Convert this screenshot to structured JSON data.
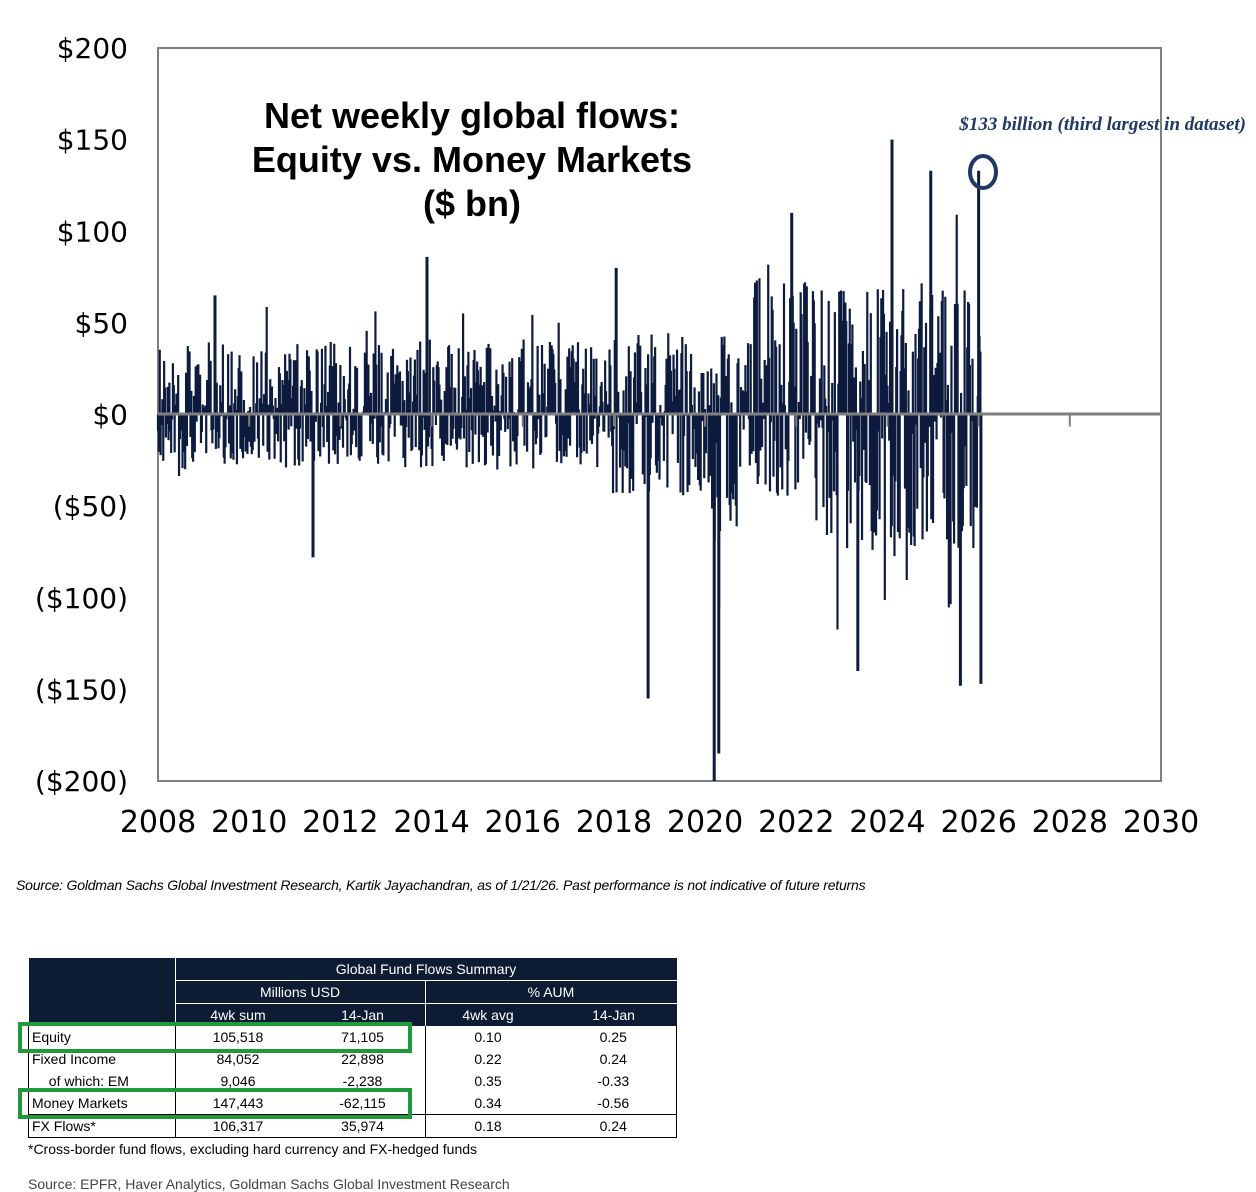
{
  "chart_data": {
    "type": "bar",
    "title_lines": [
      "Net weekly global flows:",
      "Equity vs. Money Markets",
      "($ bn)"
    ],
    "xlabel": "",
    "ylabel": "",
    "xlim": [
      2008,
      2030
    ],
    "ylim": [
      -200,
      200
    ],
    "y_ticks": [
      200,
      150,
      100,
      50,
      0,
      -50,
      -100,
      -150,
      -200
    ],
    "y_tick_labels": [
      "$200",
      "$150",
      "$100",
      "$50",
      "$0",
      "($50)",
      "($100)",
      "($150)",
      "($200)"
    ],
    "x_ticks": [
      2008,
      2010,
      2012,
      2014,
      2016,
      2018,
      2020,
      2022,
      2024,
      2026,
      2028,
      2030
    ],
    "x_tick_labels": [
      "2008",
      "2010",
      "2012",
      "2014",
      "2016",
      "2018",
      "2020",
      "2022",
      "2024",
      "2026",
      "2028",
      "2030"
    ],
    "series_note": "weekly net flows, approx. Jan 2008 - Jan 2026",
    "notable_points": [
      {
        "x": 2009.25,
        "y": 65
      },
      {
        "x": 2011.4,
        "y": -78
      },
      {
        "x": 2013.9,
        "y": 86
      },
      {
        "x": 2018.05,
        "y": 80
      },
      {
        "x": 2018.75,
        "y": -155
      },
      {
        "x": 2020.2,
        "y": -200
      },
      {
        "x": 2020.3,
        "y": -185
      },
      {
        "x": 2021.9,
        "y": 110
      },
      {
        "x": 2023.35,
        "y": -140
      },
      {
        "x": 2024.95,
        "y": 133
      },
      {
        "x": 2024.1,
        "y": 150
      },
      {
        "x": 2025.6,
        "y": -148
      },
      {
        "x": 2026.0,
        "y": 133
      },
      {
        "x": 2026.05,
        "y": -147
      }
    ],
    "annotation": {
      "text": "$133 billion (third largest in dataset)",
      "x": 2026.0,
      "y": 133
    }
  },
  "source_note": "Source: Goldman Sachs Global Investment Research, Kartik Jayachandran, as of 1/21/26. Past performance is not indicative of future returns",
  "table": {
    "title": "Global Fund Flows Summary",
    "group1": "Millions USD",
    "group2": "% AUM",
    "columns": [
      "4wk sum",
      "14-Jan",
      "4wk avg",
      "14-Jan"
    ],
    "rows": [
      {
        "label": "Equity",
        "values": [
          "105,518",
          "71,105",
          "0.10",
          "0.25"
        ]
      },
      {
        "label": "Fixed Income",
        "values": [
          "84,052",
          "22,898",
          "0.22",
          "0.24"
        ]
      },
      {
        "label": "  of which: EM",
        "values": [
          "9,046",
          "-2,238",
          "0.35",
          "-0.33"
        ]
      },
      {
        "label": "Money Markets",
        "values": [
          "147,443",
          "-62,115",
          "0.34",
          "-0.56"
        ]
      },
      {
        "label": "FX Flows*",
        "values": [
          "106,317",
          "35,974",
          "0.18",
          "0.24"
        ]
      }
    ],
    "footnote": "*Cross-border fund flows, excluding hard currency and FX-hedged funds",
    "source": "Source: EPFR, Haver Analytics, Goldman Sachs Global Investment Research"
  },
  "colors": {
    "bars": "#0d1b3e",
    "annotation": "#1f3864",
    "highlight": "#1f9a3a",
    "table_header": "#0d1b33"
  }
}
